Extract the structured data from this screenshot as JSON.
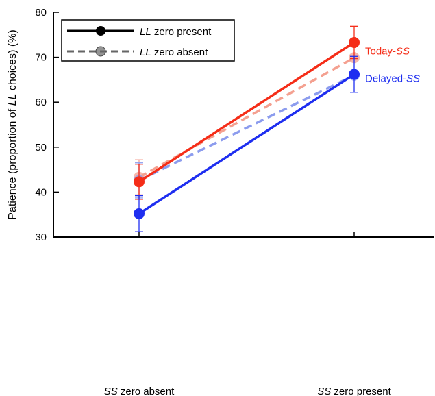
{
  "chart_data": {
    "type": "line",
    "ylabel": {
      "prefix": "Patience (proportion of ",
      "italic": "LL",
      "suffix": " choices) (%)"
    },
    "ylim": [
      30,
      80
    ],
    "yticks": [
      30,
      40,
      50,
      60,
      70,
      80
    ],
    "categories": [
      {
        "italic": "SS",
        "rest": " zero absent"
      },
      {
        "italic": "SS",
        "rest": " zero present"
      }
    ],
    "legend": {
      "position": "top-left",
      "entries": [
        {
          "italic": "LL",
          "rest": " zero present",
          "style": "solid",
          "color": "#000000"
        },
        {
          "italic": "LL",
          "rest": " zero absent",
          "style": "dashed",
          "color": "#666666"
        }
      ]
    },
    "series": [
      {
        "condition": "LL zero absent",
        "group": "Today-SS",
        "style": "dashed",
        "color": "#f4a090",
        "values": [
          43.3,
          69.9
        ],
        "err": [
          3.9,
          0.2
        ]
      },
      {
        "condition": "LL zero absent",
        "group": "Delayed-SS",
        "style": "dashed",
        "color": "#8c9cee",
        "values": [
          42.6,
          66.0
        ],
        "err": [
          3.9,
          0.3
        ]
      },
      {
        "condition": "LL zero present",
        "group": "Today-SS",
        "style": "solid",
        "color": "#f52d18",
        "values": [
          42.3,
          73.3
        ],
        "err": [
          3.9,
          3.6
        ]
      },
      {
        "condition": "LL zero present",
        "group": "Delayed-SS",
        "style": "solid",
        "color": "#1e2ef0",
        "values": [
          35.2,
          66.2
        ],
        "err": [
          4.0,
          4.0
        ]
      }
    ],
    "series_labels": [
      {
        "name": "Today-",
        "italic": "SS",
        "color": "#f52d18",
        "value": 71.4
      },
      {
        "name": "Delayed-",
        "italic": "SS",
        "color": "#1e2ef0",
        "value": 65.3
      }
    ]
  }
}
